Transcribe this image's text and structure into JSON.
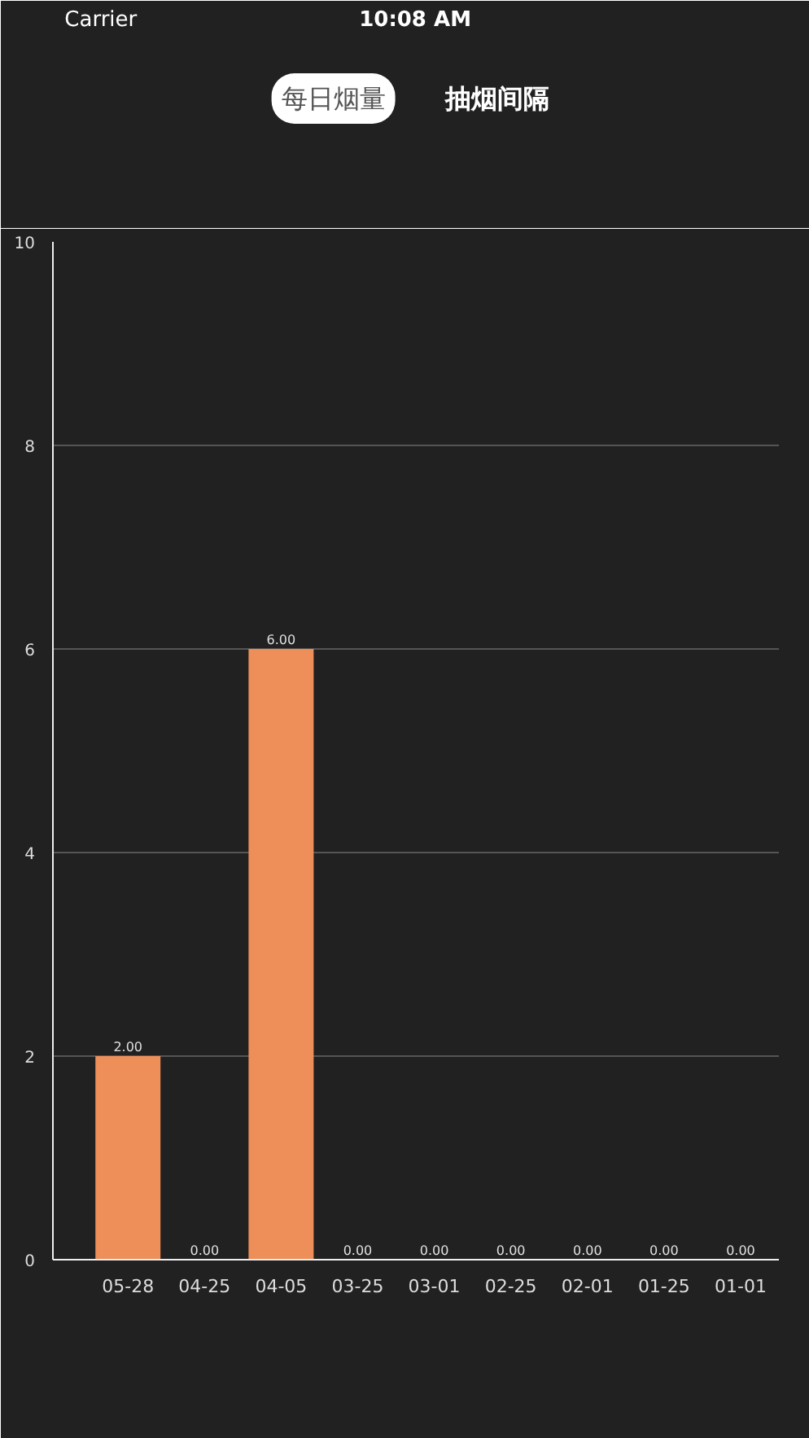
{
  "chart_data": {
    "type": "bar",
    "title": "每日烟量",
    "annotations": [
      "Carrier",
      "10:08 AM",
      "抽烟间隔"
    ],
    "categories": [
      "05-28",
      "04-25",
      "04-05",
      "03-25",
      "03-01",
      "02-25",
      "02-01",
      "01-25",
      "01-01"
    ],
    "values": [
      2,
      0,
      6,
      0,
      0,
      0,
      0,
      0,
      0
    ],
    "value_labels": [
      "2.00",
      "0.00",
      "6.00",
      "0.00",
      "0.00",
      "0.00",
      "0.00",
      "0.00",
      "0.00"
    ],
    "color": "#ee8e58",
    "ylim": [
      0,
      10
    ],
    "yticks": [
      0,
      2,
      4,
      6,
      8,
      10
    ],
    "grid": "y"
  }
}
